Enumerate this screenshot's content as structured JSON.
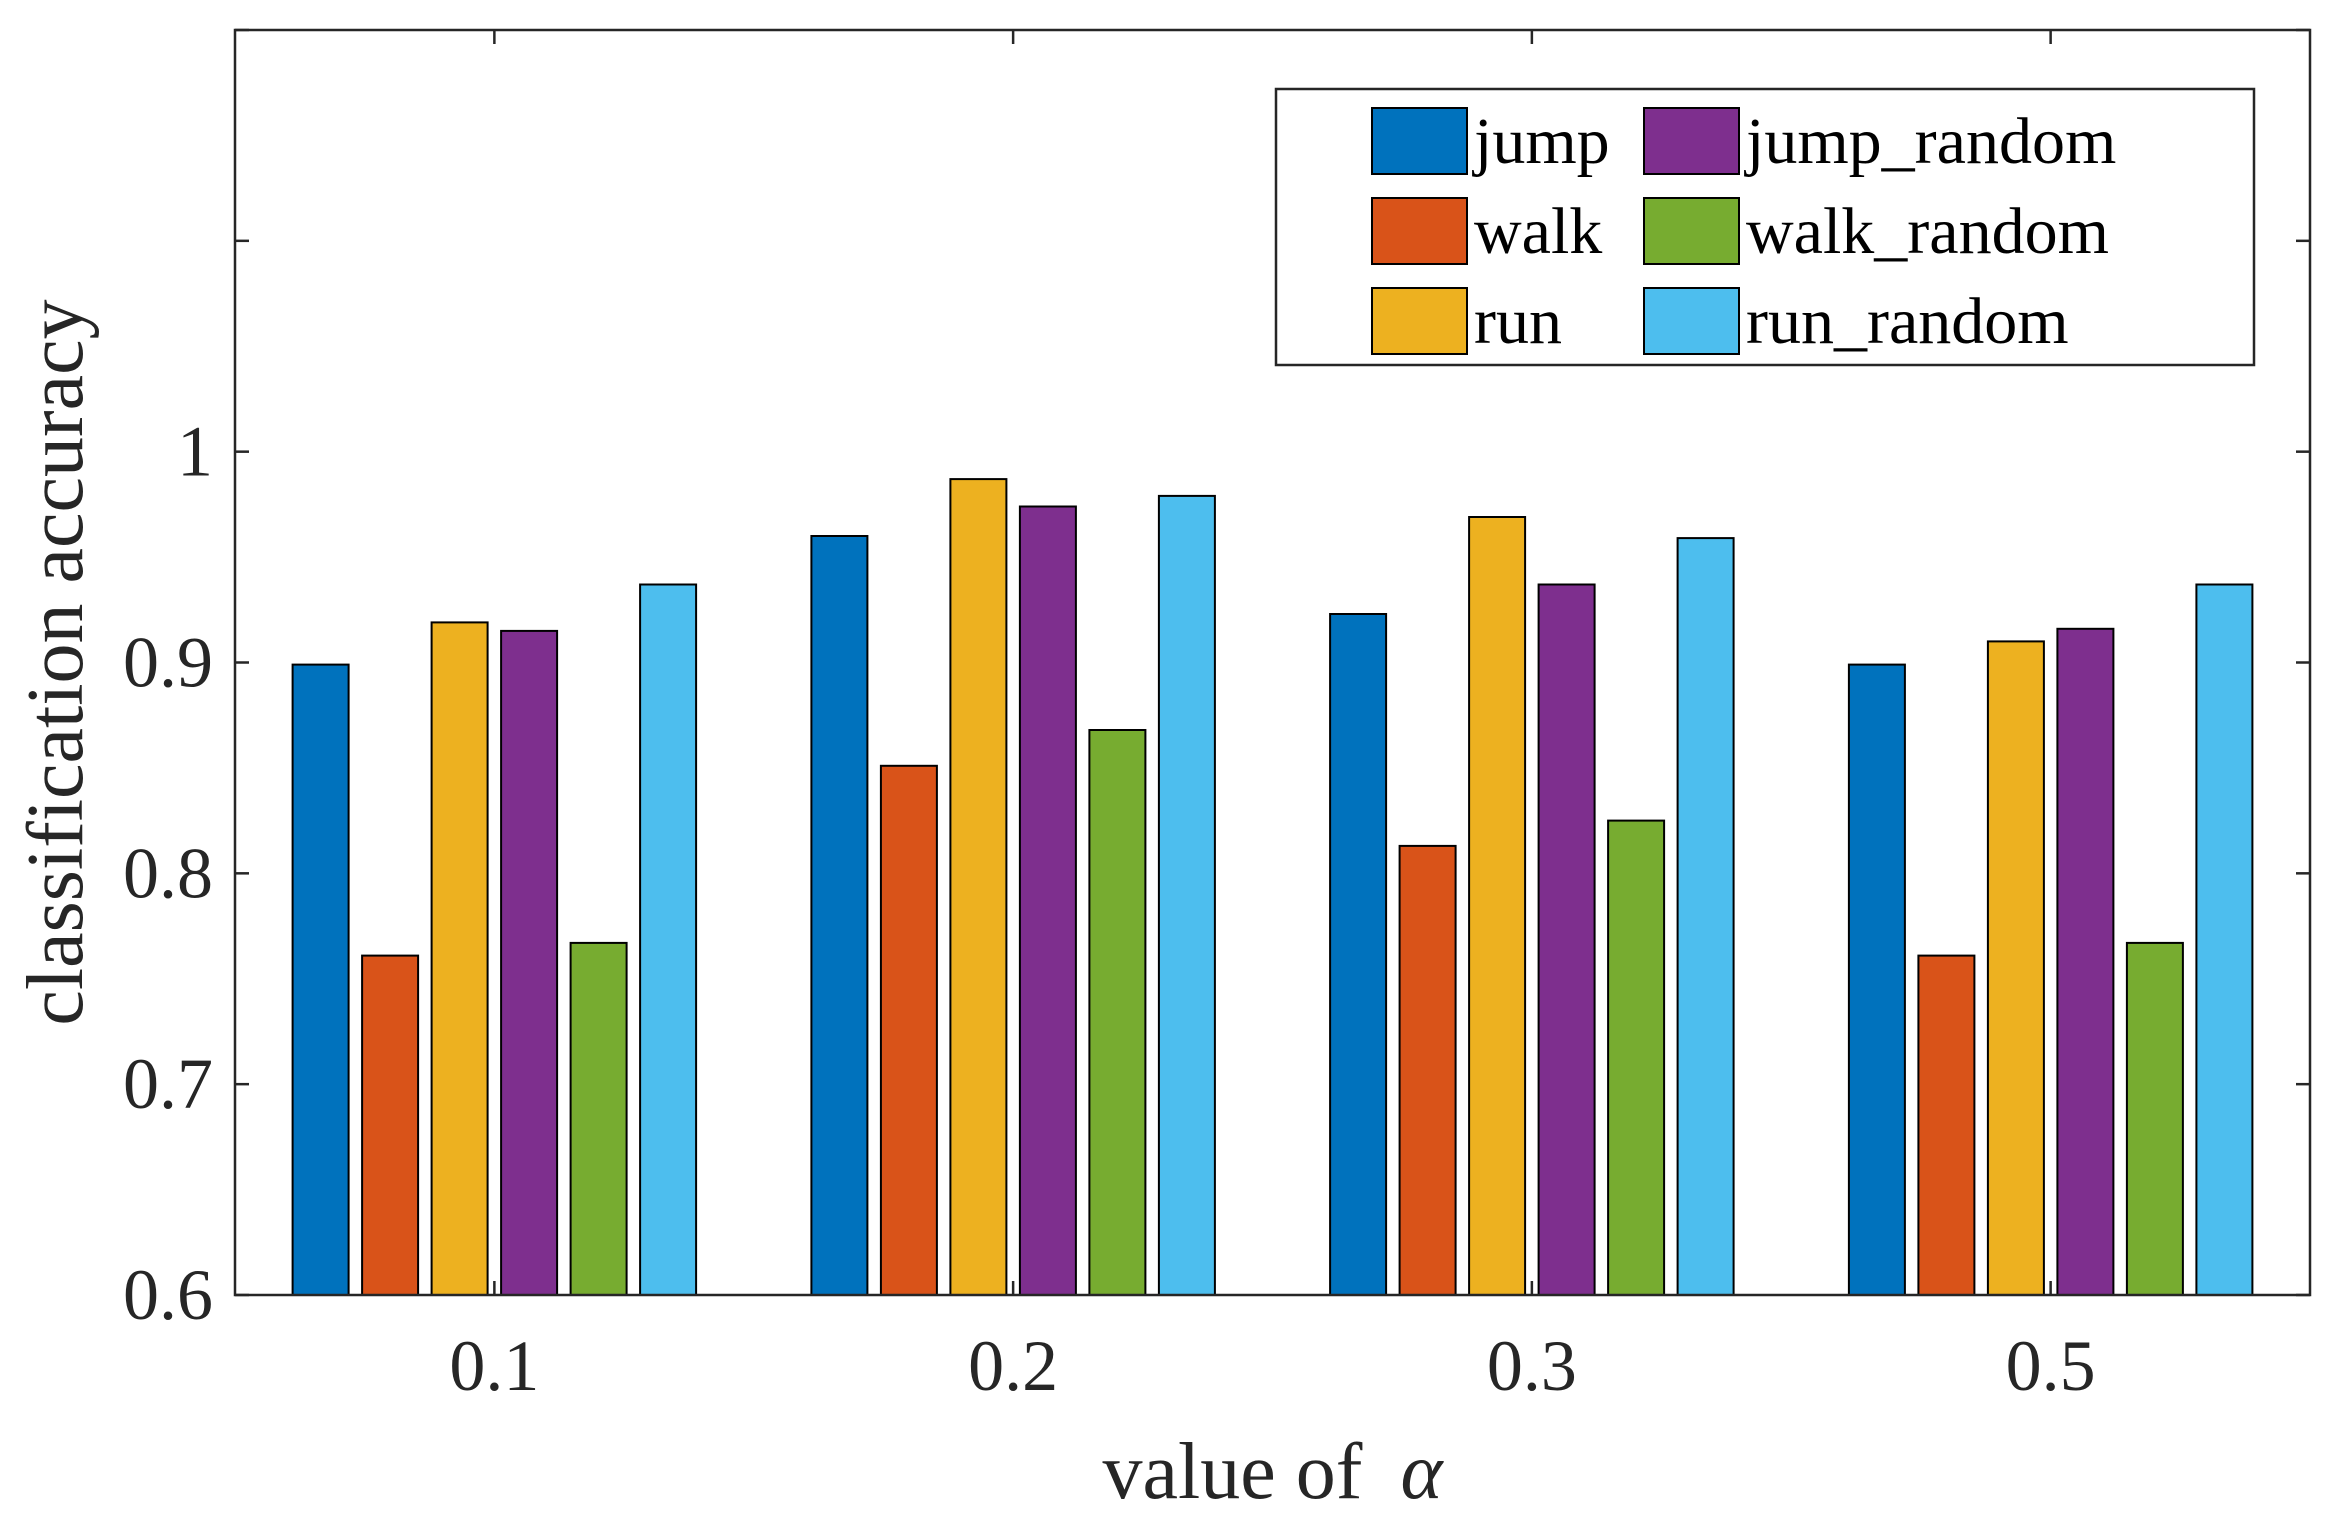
{
  "chart_data": {
    "type": "bar",
    "title": "",
    "xlabel": "value of",
    "xlabel_symbol": "α",
    "ylabel": "classification accuracy",
    "ylim": [
      0.6,
      1.2
    ],
    "yticks": [
      0.6,
      0.7,
      0.8,
      0.9,
      1.0
    ],
    "ytick_labels": [
      "0.6",
      "0.7",
      "0.8",
      "0.9",
      "1"
    ],
    "categories": [
      "0.1",
      "0.2",
      "0.3",
      "0.5"
    ],
    "grid": false,
    "legend_position": "top-right",
    "legend_columns": 2,
    "series": [
      {
        "name": "jump",
        "color": "#0072BD",
        "values": [
          0.899,
          0.96,
          0.923,
          0.899
        ]
      },
      {
        "name": "walk",
        "color": "#D95319",
        "values": [
          0.761,
          0.851,
          0.813,
          0.761
        ]
      },
      {
        "name": "run",
        "color": "#EDB120",
        "values": [
          0.919,
          0.987,
          0.969,
          0.91
        ]
      },
      {
        "name": "jump_random",
        "color": "#7E2F8E",
        "values": [
          0.915,
          0.974,
          0.937,
          0.916
        ]
      },
      {
        "name": "walk_random",
        "color": "#77AC30",
        "values": [
          0.767,
          0.868,
          0.825,
          0.767
        ]
      },
      {
        "name": "run_random",
        "color": "#4DBEEE",
        "values": [
          0.937,
          0.979,
          0.959,
          0.937
        ]
      }
    ]
  }
}
